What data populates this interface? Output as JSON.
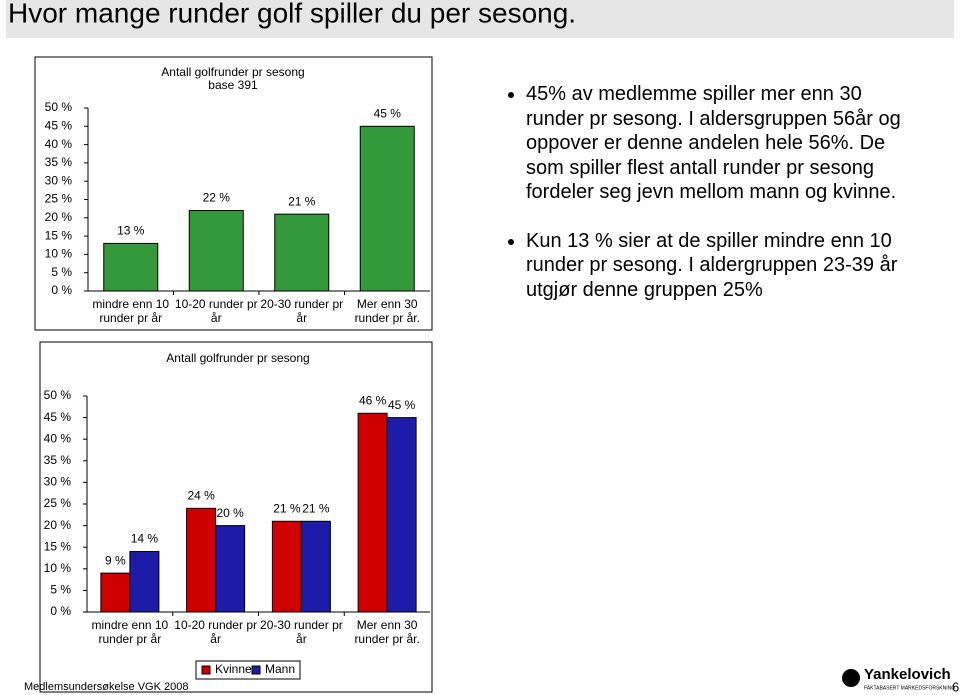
{
  "title": "Hvor mange runder golf spiller du per sesong.",
  "chart_data": [
    {
      "type": "bar",
      "title": "Antall golfrunder pr sesong",
      "subtitle": "base 391",
      "categories": [
        "mindre enn 10 runder pr år",
        "10-20 runder pr år",
        "20-30 runder pr år",
        "Mer enn 30 runder pr år."
      ],
      "values": [
        13,
        22,
        21,
        45
      ],
      "value_labels": [
        "13 %",
        "22 %",
        "21 %",
        "45 %"
      ],
      "color": "#33993a",
      "ylim": [
        0,
        50
      ],
      "yticks": [
        {
          "value": 0,
          "label": "0 %"
        },
        {
          "value": 5,
          "label": "5 %"
        },
        {
          "value": 10,
          "label": "10 %"
        },
        {
          "value": 15,
          "label": "15 %"
        },
        {
          "value": 20,
          "label": "20 %"
        },
        {
          "value": 25,
          "label": "25 %"
        },
        {
          "value": 30,
          "label": "30 %"
        },
        {
          "value": 35,
          "label": "35 %"
        },
        {
          "value": 40,
          "label": "40 %"
        },
        {
          "value": 45,
          "label": "45 %"
        },
        {
          "value": 50,
          "label": "50 %"
        }
      ]
    },
    {
      "type": "bar",
      "title": "Antall golfrunder pr sesong",
      "categories": [
        "mindre enn 10 runder pr år",
        "10-20 runder pr år",
        "20-30 runder pr år",
        "Mer enn 30 runder pr år."
      ],
      "series": [
        {
          "name": "Kvinne",
          "color": "#d10000",
          "values": [
            9,
            24,
            21,
            46
          ],
          "value_labels": [
            "9 %",
            "24 %",
            "21 %",
            "46 %"
          ]
        },
        {
          "name": "Mann",
          "color": "#1c1ca8",
          "values": [
            14,
            20,
            21,
            45
          ],
          "value_labels": [
            "14 %",
            "20 %",
            "21 %",
            "45 %"
          ]
        }
      ],
      "ylim": [
        0,
        50
      ],
      "yticks": [
        {
          "value": 0,
          "label": "0 %"
        },
        {
          "value": 5,
          "label": "5 %"
        },
        {
          "value": 10,
          "label": "10 %"
        },
        {
          "value": 15,
          "label": "15 %"
        },
        {
          "value": 20,
          "label": "20 %"
        },
        {
          "value": 25,
          "label": "25 %"
        },
        {
          "value": 30,
          "label": "30 %"
        },
        {
          "value": 35,
          "label": "35 %"
        },
        {
          "value": 40,
          "label": "40 %"
        },
        {
          "value": 45,
          "label": "45 %"
        },
        {
          "value": 50,
          "label": "50 %"
        }
      ]
    }
  ],
  "bullets": [
    "45% av medlemme spiller mer enn 30 runder pr sesong. I aldersgruppen 56år og oppover er denne andelen hele 56%. De som spiller flest antall runder pr sesong fordeler seg jevn mellom mann og kvinne.",
    "Kun 13 % sier at de spiller mindre enn 10 runder pr sesong. I aldergruppen 23-39 år utgjør denne gruppen 25%"
  ],
  "footer": {
    "source": "Medlemsundersøkelse VGK 2008",
    "logo": "Yankelovich",
    "logo_tagline": "FAKTABASERT MARKEDSFORSKNING",
    "page": "6"
  }
}
